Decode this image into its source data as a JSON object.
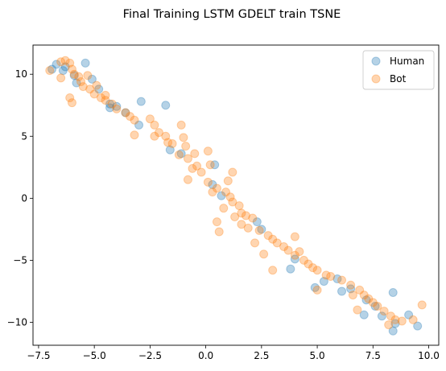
{
  "chart_data": {
    "type": "scatter",
    "title": "Final Training LSTM GDELT train TSNE",
    "xlabel": "",
    "ylabel": "",
    "xlim": [
      -7.75,
      10.45
    ],
    "ylim": [
      -11.85,
      12.35
    ],
    "x_ticks": [
      -7.5,
      -5.0,
      -2.5,
      0.0,
      2.5,
      5.0,
      7.5,
      10.0
    ],
    "x_tick_labels": [
      "−7.5",
      "−5.0",
      "−2.5",
      "0.0",
      "2.5",
      "5.0",
      "7.5",
      "10.0"
    ],
    "y_ticks": [
      10,
      5,
      0,
      -5,
      -10
    ],
    "y_tick_labels": [
      "10",
      "5",
      "0",
      "−5",
      "−10"
    ],
    "grid": false,
    "legend_position": "top-right",
    "series": [
      {
        "name": "Human",
        "color": "#1f77b4",
        "points": [
          {
            "x": -6.9,
            "y": 10.4
          },
          {
            "x": -6.7,
            "y": 10.8
          },
          {
            "x": -6.4,
            "y": 10.3
          },
          {
            "x": -6.3,
            "y": 10.6
          },
          {
            "x": -5.9,
            "y": 9.9
          },
          {
            "x": -5.8,
            "y": 9.3
          },
          {
            "x": -5.4,
            "y": 10.9
          },
          {
            "x": -5.1,
            "y": 9.6
          },
          {
            "x": -4.8,
            "y": 8.8
          },
          {
            "x": -4.3,
            "y": 7.6
          },
          {
            "x": -4.3,
            "y": 7.3
          },
          {
            "x": -4.0,
            "y": 7.4
          },
          {
            "x": -3.6,
            "y": 6.9
          },
          {
            "x": -2.9,
            "y": 7.8
          },
          {
            "x": -3.0,
            "y": 5.9
          },
          {
            "x": -1.8,
            "y": 7.5
          },
          {
            "x": -1.6,
            "y": 3.9
          },
          {
            "x": -1.1,
            "y": 3.6
          },
          {
            "x": 0.4,
            "y": 2.7
          },
          {
            "x": 0.3,
            "y": 1.1
          },
          {
            "x": 0.7,
            "y": 0.2
          },
          {
            "x": 2.3,
            "y": -1.9
          },
          {
            "x": 2.5,
            "y": -2.5
          },
          {
            "x": 3.8,
            "y": -5.7
          },
          {
            "x": 4.0,
            "y": -4.9
          },
          {
            "x": 4.9,
            "y": -7.2
          },
          {
            "x": 5.3,
            "y": -6.7
          },
          {
            "x": 5.9,
            "y": -6.5
          },
          {
            "x": 6.1,
            "y": -7.5
          },
          {
            "x": 6.5,
            "y": -7.3
          },
          {
            "x": 7.1,
            "y": -9.4
          },
          {
            "x": 7.2,
            "y": -8.2
          },
          {
            "x": 7.6,
            "y": -8.7
          },
          {
            "x": 7.9,
            "y": -9.5
          },
          {
            "x": 8.4,
            "y": -7.6
          },
          {
            "x": 8.4,
            "y": -10.7
          },
          {
            "x": 8.5,
            "y": -10.1
          },
          {
            "x": 9.1,
            "y": -9.4
          },
          {
            "x": 9.5,
            "y": -10.3
          }
        ]
      },
      {
        "name": "Bot",
        "color": "#ff7f0e",
        "points": [
          {
            "x": -7.0,
            "y": 10.3
          },
          {
            "x": -6.5,
            "y": 11.0
          },
          {
            "x": -6.3,
            "y": 11.1
          },
          {
            "x": -6.1,
            "y": 10.9
          },
          {
            "x": -6.0,
            "y": 10.4
          },
          {
            "x": -5.9,
            "y": 10.0
          },
          {
            "x": -5.7,
            "y": 9.8
          },
          {
            "x": -5.6,
            "y": 9.4
          },
          {
            "x": -5.5,
            "y": 9.0
          },
          {
            "x": -5.3,
            "y": 9.9
          },
          {
            "x": -5.2,
            "y": 8.8
          },
          {
            "x": -5.0,
            "y": 8.4
          },
          {
            "x": -4.9,
            "y": 9.1
          },
          {
            "x": -4.7,
            "y": 8.1
          },
          {
            "x": -4.5,
            "y": 8.3
          },
          {
            "x": -4.5,
            "y": 7.9
          },
          {
            "x": -4.2,
            "y": 7.6
          },
          {
            "x": -4.0,
            "y": 7.2
          },
          {
            "x": -6.5,
            "y": 9.7
          },
          {
            "x": -6.1,
            "y": 8.1
          },
          {
            "x": -6.0,
            "y": 7.7
          },
          {
            "x": -3.6,
            "y": 6.9
          },
          {
            "x": -3.4,
            "y": 6.6
          },
          {
            "x": -3.2,
            "y": 6.3
          },
          {
            "x": -3.2,
            "y": 5.1
          },
          {
            "x": -2.5,
            "y": 6.4
          },
          {
            "x": -2.3,
            "y": 5.9
          },
          {
            "x": -2.3,
            "y": 5.0
          },
          {
            "x": -2.1,
            "y": 5.3
          },
          {
            "x": -1.8,
            "y": 5.0
          },
          {
            "x": -1.7,
            "y": 4.5
          },
          {
            "x": -1.5,
            "y": 4.4
          },
          {
            "x": -1.2,
            "y": 3.5
          },
          {
            "x": -1.1,
            "y": 5.9
          },
          {
            "x": -1.0,
            "y": 4.9
          },
          {
            "x": -0.9,
            "y": 4.2
          },
          {
            "x": -0.8,
            "y": 3.2
          },
          {
            "x": -0.6,
            "y": 2.4
          },
          {
            "x": -0.5,
            "y": 3.6
          },
          {
            "x": -0.4,
            "y": 2.6
          },
          {
            "x": -0.8,
            "y": 1.5
          },
          {
            "x": -0.2,
            "y": 2.1
          },
          {
            "x": 0.1,
            "y": 3.8
          },
          {
            "x": 0.2,
            "y": 2.7
          },
          {
            "x": 0.1,
            "y": 1.3
          },
          {
            "x": 0.3,
            "y": 0.5
          },
          {
            "x": 0.5,
            "y": 0.8
          },
          {
            "x": 0.5,
            "y": -1.9
          },
          {
            "x": 0.6,
            "y": -2.7
          },
          {
            "x": 0.8,
            "y": -0.8
          },
          {
            "x": 0.9,
            "y": 0.5
          },
          {
            "x": 1.0,
            "y": 1.4
          },
          {
            "x": 1.1,
            "y": 0.1
          },
          {
            "x": 1.2,
            "y": -0.3
          },
          {
            "x": 1.2,
            "y": 2.1
          },
          {
            "x": 1.3,
            "y": -1.5
          },
          {
            "x": 1.5,
            "y": -0.6
          },
          {
            "x": 1.6,
            "y": -1.2
          },
          {
            "x": 1.6,
            "y": -2.1
          },
          {
            "x": 1.8,
            "y": -1.4
          },
          {
            "x": 1.9,
            "y": -2.4
          },
          {
            "x": 2.1,
            "y": -1.6
          },
          {
            "x": 2.2,
            "y": -3.6
          },
          {
            "x": 2.4,
            "y": -2.6
          },
          {
            "x": 2.6,
            "y": -4.5
          },
          {
            "x": 2.8,
            "y": -3.0
          },
          {
            "x": 3.0,
            "y": -3.3
          },
          {
            "x": 3.0,
            "y": -5.8
          },
          {
            "x": 3.2,
            "y": -3.6
          },
          {
            "x": 3.5,
            "y": -3.9
          },
          {
            "x": 3.7,
            "y": -4.2
          },
          {
            "x": 4.0,
            "y": -3.1
          },
          {
            "x": 4.0,
            "y": -4.6
          },
          {
            "x": 4.2,
            "y": -4.3
          },
          {
            "x": 4.4,
            "y": -5.0
          },
          {
            "x": 4.6,
            "y": -5.3
          },
          {
            "x": 4.8,
            "y": -5.6
          },
          {
            "x": 5.0,
            "y": -5.8
          },
          {
            "x": 5.0,
            "y": -7.4
          },
          {
            "x": 5.4,
            "y": -6.2
          },
          {
            "x": 5.6,
            "y": -6.3
          },
          {
            "x": 6.1,
            "y": -6.6
          },
          {
            "x": 6.5,
            "y": -7.0
          },
          {
            "x": 6.6,
            "y": -7.8
          },
          {
            "x": 6.8,
            "y": -9.0
          },
          {
            "x": 6.9,
            "y": -7.4
          },
          {
            "x": 7.1,
            "y": -7.8
          },
          {
            "x": 7.3,
            "y": -8.1
          },
          {
            "x": 7.5,
            "y": -8.4
          },
          {
            "x": 7.7,
            "y": -8.7
          },
          {
            "x": 8.0,
            "y": -9.1
          },
          {
            "x": 8.3,
            "y": -9.5
          },
          {
            "x": 8.2,
            "y": -10.2
          },
          {
            "x": 8.5,
            "y": -9.8
          },
          {
            "x": 8.8,
            "y": -9.9
          },
          {
            "x": 9.3,
            "y": -9.8
          },
          {
            "x": 9.7,
            "y": -8.6
          }
        ]
      }
    ]
  }
}
